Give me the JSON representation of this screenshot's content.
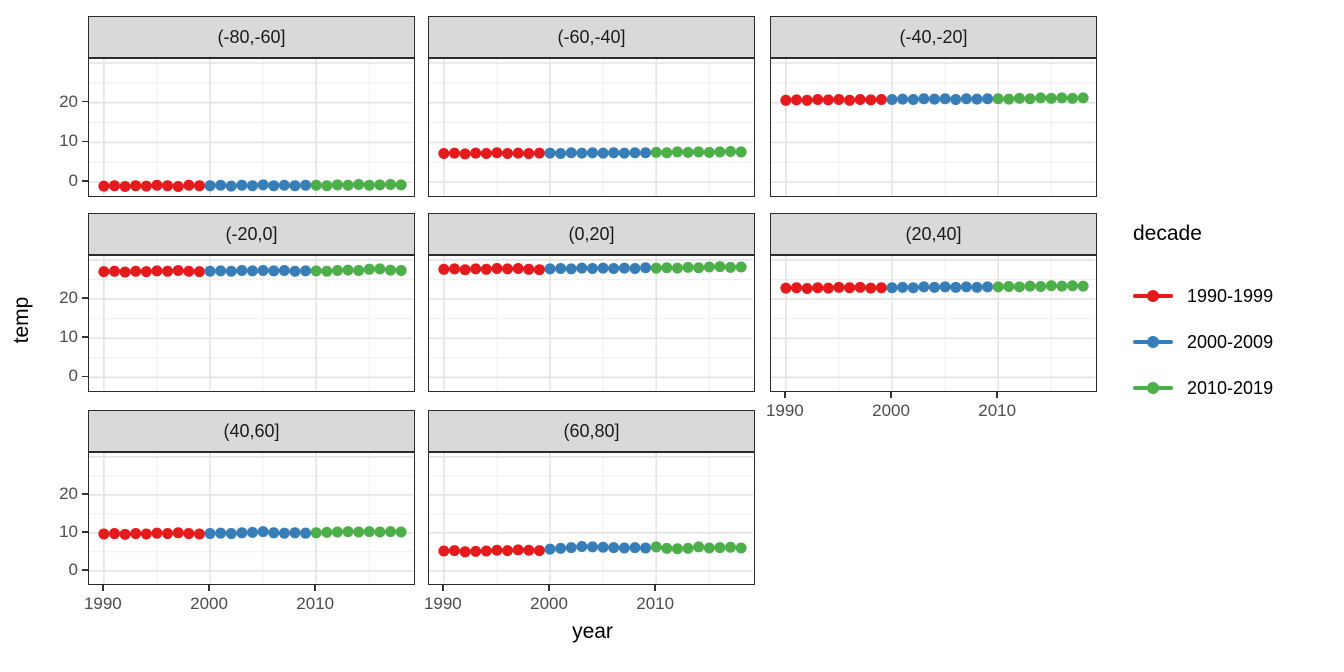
{
  "chart_data": {
    "type": "scatter",
    "description": "Faceted scatter plot of temperature by year for latitude bands",
    "xlabel": "year",
    "ylabel": "temp",
    "x_ticks": [
      1990,
      2000,
      2010
    ],
    "y_ticks": [
      0,
      10,
      20
    ],
    "xlim": [
      1988.6,
      2019.4
    ],
    "ylim": [
      -4,
      31
    ],
    "grid": {
      "x_major": [
        1990,
        2000,
        2010
      ],
      "x_minor": [
        1995,
        2005,
        2015
      ],
      "y_major": [
        0,
        10,
        20,
        30
      ],
      "y_minor": [
        5,
        15,
        25
      ]
    },
    "years": [
      1990,
      1991,
      1992,
      1993,
      1994,
      1995,
      1996,
      1997,
      1998,
      1999,
      2000,
      2001,
      2002,
      2003,
      2004,
      2005,
      2006,
      2007,
      2008,
      2009,
      2010,
      2011,
      2012,
      2013,
      2014,
      2015,
      2016,
      2017,
      2018
    ],
    "legend": {
      "title": "decade",
      "position": "right",
      "entries": [
        {
          "label": "1990-1999",
          "color": "#E41A1C",
          "from": 1990,
          "to": 1999
        },
        {
          "label": "2000-2009",
          "color": "#377EB8",
          "from": 2000,
          "to": 2009
        },
        {
          "label": "2010-2019",
          "color": "#4DAF4A",
          "from": 2010,
          "to": 2019
        }
      ]
    },
    "facets": [
      {
        "label": "(-80,-60]",
        "temps": [
          -1.0,
          -0.9,
          -1.1,
          -0.9,
          -1.0,
          -0.8,
          -0.9,
          -1.1,
          -0.8,
          -0.9,
          -0.9,
          -0.8,
          -1.0,
          -0.8,
          -0.9,
          -0.7,
          -0.9,
          -0.8,
          -0.9,
          -0.8,
          -0.8,
          -0.9,
          -0.7,
          -0.8,
          -0.6,
          -0.8,
          -0.7,
          -0.6,
          -0.7
        ]
      },
      {
        "label": "(-60,-40]",
        "temps": [
          7.2,
          7.3,
          7.1,
          7.3,
          7.2,
          7.4,
          7.2,
          7.3,
          7.2,
          7.3,
          7.3,
          7.2,
          7.4,
          7.3,
          7.4,
          7.3,
          7.4,
          7.3,
          7.4,
          7.4,
          7.5,
          7.4,
          7.6,
          7.5,
          7.6,
          7.5,
          7.6,
          7.7,
          7.6
        ]
      },
      {
        "label": "(-40,-20]",
        "temps": [
          20.6,
          20.7,
          20.6,
          20.8,
          20.7,
          20.8,
          20.6,
          20.8,
          20.7,
          20.8,
          20.8,
          20.9,
          20.8,
          21.0,
          20.9,
          21.0,
          20.8,
          21.0,
          20.9,
          21.0,
          21.0,
          20.9,
          21.1,
          21.0,
          21.2,
          21.1,
          21.2,
          21.1,
          21.2
        ]
      },
      {
        "label": "(-20,0]",
        "temps": [
          27.0,
          27.1,
          26.9,
          27.1,
          27.0,
          27.2,
          27.1,
          27.3,
          27.1,
          27.0,
          27.1,
          27.2,
          27.1,
          27.3,
          27.2,
          27.3,
          27.2,
          27.3,
          27.1,
          27.2,
          27.2,
          27.1,
          27.3,
          27.4,
          27.3,
          27.6,
          27.7,
          27.4,
          27.3
        ]
      },
      {
        "label": "(0,20]",
        "temps": [
          27.6,
          27.7,
          27.5,
          27.7,
          27.6,
          27.8,
          27.7,
          27.8,
          27.6,
          27.5,
          27.7,
          27.8,
          27.7,
          27.9,
          27.8,
          27.9,
          27.8,
          27.9,
          27.8,
          28.0,
          27.9,
          28.0,
          27.9,
          28.1,
          28.0,
          28.2,
          28.3,
          28.1,
          28.2
        ]
      },
      {
        "label": "(20,40]",
        "temps": [
          22.8,
          22.9,
          22.7,
          22.9,
          22.8,
          23.0,
          22.9,
          23.0,
          22.8,
          22.9,
          22.9,
          23.0,
          22.9,
          23.1,
          23.0,
          23.1,
          23.0,
          23.1,
          23.0,
          23.1,
          23.1,
          23.2,
          23.1,
          23.3,
          23.2,
          23.4,
          23.3,
          23.4,
          23.3
        ]
      },
      {
        "label": "(40,60]",
        "temps": [
          9.7,
          9.8,
          9.6,
          9.8,
          9.7,
          9.9,
          9.8,
          10.0,
          9.8,
          9.7,
          9.8,
          9.9,
          9.8,
          10.0,
          10.1,
          10.3,
          10.0,
          9.9,
          10.0,
          9.9,
          10.0,
          10.1,
          10.2,
          10.3,
          10.2,
          10.3,
          10.2,
          10.3,
          10.2
        ]
      },
      {
        "label": "(60,80]",
        "temps": [
          5.2,
          5.3,
          5.0,
          5.1,
          5.2,
          5.4,
          5.3,
          5.5,
          5.4,
          5.3,
          5.7,
          5.9,
          6.1,
          6.4,
          6.3,
          6.2,
          6.1,
          6.0,
          6.1,
          6.0,
          6.3,
          5.9,
          5.8,
          5.9,
          6.3,
          6.0,
          6.1,
          6.2,
          6.0
        ]
      }
    ],
    "style": {
      "strip_fill": "#d9d9d9",
      "panel_border": "#2b2b2b",
      "grid_major": "#e3e3e3",
      "grid_minor": "#efefef",
      "tick_text": "#4d4d4d"
    }
  }
}
